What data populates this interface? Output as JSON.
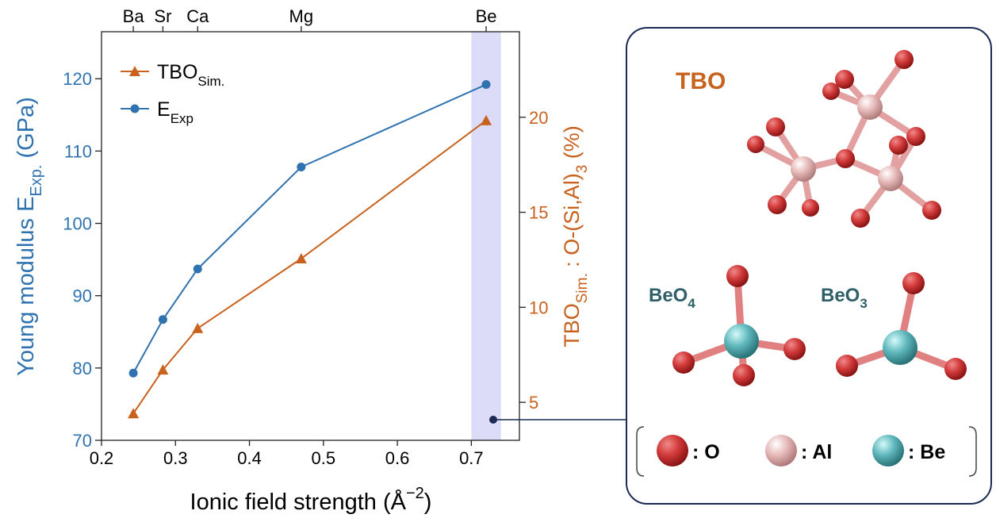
{
  "chart_data": {
    "type": "line",
    "x": [
      0.243,
      0.283,
      0.33,
      0.47,
      0.72
    ],
    "series": [
      {
        "name": "E",
        "name_sub": "Exp",
        "color": "#2f72b0",
        "marker": "circle",
        "values": [
          79.3,
          86.7,
          93.7,
          107.8,
          119.2
        ]
      },
      {
        "name": "TBO",
        "name_sub": "Sim.",
        "color": "#c8621e",
        "marker": "triangle",
        "axis": "y2",
        "values": [
          4.41,
          6.71,
          8.89,
          12.56,
          19.83
        ]
      }
    ],
    "xlim": [
      0.2,
      0.765
    ],
    "xticks": [
      0.2,
      0.3,
      0.4,
      0.5,
      0.6,
      0.7
    ],
    "ylim": [
      70,
      126.5
    ],
    "yticks": [
      70,
      80,
      90,
      100,
      110,
      120
    ],
    "y2lim": [
      3,
      24.5
    ],
    "y2ticks": [
      5,
      10,
      15,
      20
    ],
    "top_labels": [
      "Ba",
      "Sr",
      "Ca",
      "Mg",
      "Be"
    ],
    "top_positions": [
      0.243,
      0.283,
      0.33,
      0.47,
      0.72
    ],
    "highlight_x": [
      0.7,
      0.74
    ],
    "highlight_color": "#dcdcf8",
    "xlabel": {
      "text": "Ionic field strength (Å",
      "sup": "−2",
      "end": ")"
    },
    "ylabel": {
      "text": "Young modulus E",
      "sub": "Exp.",
      "end": "  (GPa)"
    },
    "y2label": {
      "text": "TBO",
      "sub": "Sim.",
      "mid": "  : O-(Si,Al)",
      "sub2": "3",
      "end": " (%)"
    }
  },
  "panel": {
    "title": "TBO",
    "beo4": {
      "text": "BeO",
      "sub": "4"
    },
    "beo3": {
      "text": "BeO",
      "sub": "3"
    },
    "legend": [
      ": O",
      ": Al",
      ": Be"
    ]
  }
}
